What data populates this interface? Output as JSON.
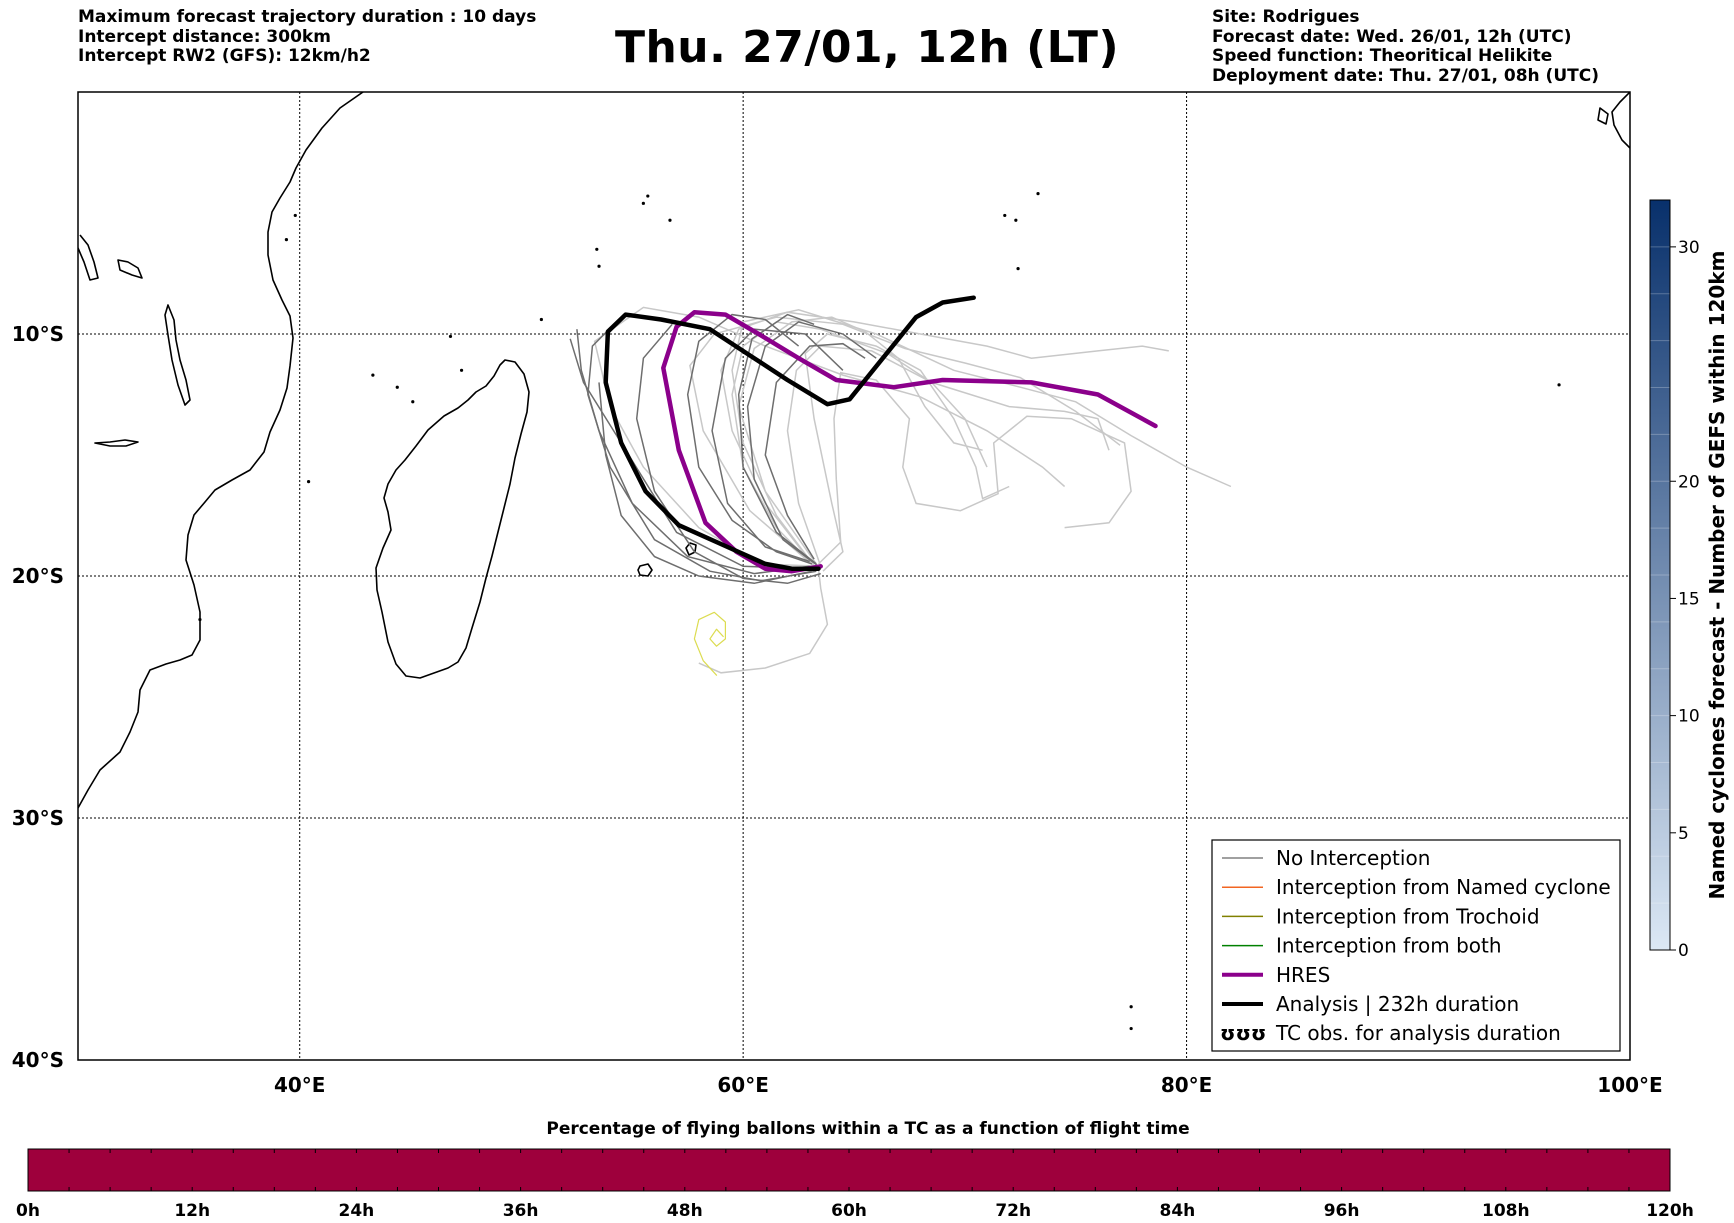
{
  "header": {
    "left_lines": [
      "Maximum forecast trajectory duration : 10 days",
      "Intercept distance: 300km",
      "Intercept RW2 (GFS):  12km/h2"
    ],
    "title": "Thu. 27/01, 12h (LT)",
    "right_lines": [
      "Site: Rodrigues",
      "Forecast date: Wed. 26/01, 12h (UTC)",
      "Speed function: Theoritical Helikite",
      "Deployment date: Thu. 27/01, 08h (UTC)"
    ]
  },
  "map": {
    "lon_range": [
      30,
      100
    ],
    "lat_range": [
      0,
      -40
    ],
    "lon_grid": [
      40,
      60,
      80
    ],
    "lat_grid": [
      -10,
      -20,
      -30
    ],
    "x_ticks": [
      {
        "lon": 40,
        "label": "40°E"
      },
      {
        "lon": 60,
        "label": "60°E"
      },
      {
        "lon": 80,
        "label": "80°E"
      },
      {
        "lon": 100,
        "label": "100°E"
      }
    ],
    "y_ticks": [
      {
        "lat": -10,
        "label": "10°S"
      },
      {
        "lat": -20,
        "label": "20°S"
      },
      {
        "lat": -30,
        "label": "30°S"
      },
      {
        "lat": -40,
        "label": "40°S"
      }
    ]
  },
  "chart_data": {
    "type": "line",
    "x_unit": "longitude (°E)",
    "y_unit": "latitude (°, negative = S)",
    "series": [
      {
        "name": "HRES",
        "color": "#8b008b",
        "width": 4.5,
        "points": [
          [
            63.5,
            -19.6
          ],
          [
            62.2,
            -19.8
          ],
          [
            61,
            -19.7
          ],
          [
            59.7,
            -19
          ],
          [
            58.3,
            -17.8
          ],
          [
            57.1,
            -14.8
          ],
          [
            56.4,
            -11.4
          ],
          [
            57,
            -9.7
          ],
          [
            57.8,
            -9.1
          ],
          [
            59.2,
            -9.2
          ],
          [
            60.7,
            -10
          ],
          [
            62.5,
            -11
          ],
          [
            64.2,
            -11.9
          ],
          [
            66.8,
            -12.2
          ],
          [
            69,
            -11.9
          ],
          [
            73,
            -12
          ],
          [
            76,
            -12.5
          ],
          [
            78.6,
            -13.8
          ]
        ]
      },
      {
        "name": "Analysis | 232h duration",
        "color": "#000000",
        "width": 4.5,
        "points": [
          [
            63.4,
            -19.7
          ],
          [
            62.2,
            -19.7
          ],
          [
            61,
            -19.5
          ],
          [
            59.3,
            -18.8
          ],
          [
            57.1,
            -17.9
          ],
          [
            55.6,
            -16.5
          ],
          [
            54.5,
            -14.5
          ],
          [
            53.8,
            -12
          ],
          [
            53.9,
            -9.9
          ],
          [
            54.7,
            -9.2
          ],
          [
            56.3,
            -9.4
          ],
          [
            58.5,
            -9.8
          ],
          [
            60.5,
            -11
          ],
          [
            62,
            -11.9
          ],
          [
            63.8,
            -12.9
          ],
          [
            64.8,
            -12.7
          ],
          [
            66.3,
            -11
          ],
          [
            67.8,
            -9.3
          ],
          [
            69,
            -8.7
          ],
          [
            70.4,
            -8.5
          ]
        ]
      },
      {
        "name": "",
        "color": "#dcdc50",
        "width": 1.2,
        "points": [
          [
            58.8,
            -24.1
          ],
          [
            58.2,
            -23.5
          ],
          [
            57.8,
            -22.6
          ],
          [
            58,
            -21.8
          ],
          [
            58.7,
            -21.5
          ],
          [
            59.2,
            -21.9
          ],
          [
            59.2,
            -22.6
          ],
          [
            58.8,
            -22.9
          ],
          [
            58.5,
            -22.6
          ],
          [
            58.8,
            -22.2
          ],
          [
            59.1,
            -22.5
          ]
        ]
      }
    ],
    "gefs_dark": [
      [
        [
          63.2,
          -19.7
        ],
        [
          60,
          -19.6
        ],
        [
          57,
          -18.2
        ],
        [
          54.5,
          -14.5
        ],
        [
          52.8,
          -12
        ],
        [
          52.2,
          -10.2
        ]
      ],
      [
        [
          63,
          -19.6
        ],
        [
          60.5,
          -19.9
        ],
        [
          57.5,
          -19.2
        ],
        [
          55,
          -17
        ],
        [
          53.5,
          -14
        ],
        [
          52.7,
          -11.5
        ],
        [
          52.5,
          -9.8
        ]
      ],
      [
        [
          63.3,
          -19.8
        ],
        [
          60.8,
          -20.2
        ],
        [
          58.5,
          -19.8
        ],
        [
          56,
          -18.5
        ],
        [
          54,
          -15.5
        ],
        [
          53,
          -12.5
        ],
        [
          53.2,
          -10.5
        ],
        [
          54.5,
          -9.3
        ]
      ],
      [
        [
          63.1,
          -19.5
        ],
        [
          61.5,
          -19
        ],
        [
          59.5,
          -17.7
        ],
        [
          58,
          -15.5
        ],
        [
          57.5,
          -12.5
        ],
        [
          58,
          -10.3
        ],
        [
          59.5,
          -9.2
        ],
        [
          61,
          -9.4
        ],
        [
          62.5,
          -10.5
        ]
      ],
      [
        [
          63.4,
          -19.6
        ],
        [
          61.8,
          -18.5
        ],
        [
          60.5,
          -16
        ],
        [
          60.2,
          -13
        ],
        [
          61,
          -10.5
        ],
        [
          62.5,
          -9.5
        ],
        [
          64.5,
          -10
        ],
        [
          66,
          -11
        ]
      ],
      [
        [
          63,
          -19.4
        ],
        [
          61,
          -18.8
        ],
        [
          59.3,
          -17
        ],
        [
          58.6,
          -14
        ],
        [
          59.2,
          -11
        ],
        [
          60.5,
          -9.8
        ],
        [
          62.8,
          -10
        ],
        [
          64.5,
          -11.5
        ]
      ],
      [
        [
          63.5,
          -19.9
        ],
        [
          62,
          -20.3
        ],
        [
          60,
          -20.1
        ],
        [
          57.8,
          -19
        ],
        [
          56,
          -16.5
        ],
        [
          55.2,
          -13.5
        ],
        [
          55.5,
          -11
        ],
        [
          56.8,
          -9.6
        ]
      ],
      [
        [
          63.2,
          -19.3
        ],
        [
          62,
          -17.5
        ],
        [
          61,
          -15
        ],
        [
          61.5,
          -12
        ],
        [
          63,
          -10.5
        ],
        [
          64.5,
          -10.4
        ],
        [
          65.5,
          -11
        ]
      ],
      [
        [
          63.1,
          -19.8
        ],
        [
          60.5,
          -20.3
        ],
        [
          58,
          -20
        ],
        [
          56,
          -19.2
        ],
        [
          54.5,
          -17.5
        ],
        [
          53.8,
          -15
        ],
        [
          53.5,
          -12
        ]
      ],
      [
        [
          63.3,
          -19.5
        ],
        [
          61.5,
          -18.2
        ],
        [
          60,
          -15.5
        ],
        [
          59.8,
          -12.5
        ],
        [
          60.4,
          -10.2
        ],
        [
          62,
          -9.2
        ],
        [
          63.2,
          -9.6
        ]
      ]
    ],
    "gefs_light": [
      [
        [
          63.5,
          -19.6
        ],
        [
          60.8,
          -19.5
        ],
        [
          58,
          -18
        ],
        [
          55.5,
          -15.5
        ],
        [
          54,
          -13
        ],
        [
          53.3,
          -10.3
        ],
        [
          55.5,
          -8.9
        ],
        [
          58,
          -9.3
        ],
        [
          61,
          -10.5
        ],
        [
          64.5,
          -11.7
        ],
        [
          68,
          -12.6
        ],
        [
          71,
          -14
        ],
        [
          73.5,
          -15.5
        ],
        [
          74.5,
          -16.3
        ]
      ],
      [
        [
          63.3,
          -19.7
        ],
        [
          61.5,
          -17.5
        ],
        [
          60,
          -14.5
        ],
        [
          59.5,
          -11.5
        ],
        [
          60,
          -9.5
        ],
        [
          62.5,
          -9
        ],
        [
          66,
          -10
        ],
        [
          69.5,
          -11.5
        ],
        [
          72.5,
          -12.2
        ],
        [
          75,
          -12.8
        ],
        [
          77.5,
          -14.2
        ],
        [
          80,
          -15.5
        ],
        [
          82,
          -16.3
        ]
      ],
      [
        [
          63.2,
          -19.6
        ],
        [
          61,
          -17
        ],
        [
          59.5,
          -14
        ],
        [
          59,
          -11.5
        ],
        [
          59.8,
          -9.8
        ],
        [
          62,
          -9.1
        ],
        [
          65,
          -9.5
        ],
        [
          68,
          -10
        ],
        [
          71,
          -10.5
        ],
        [
          73,
          -11
        ],
        [
          76,
          -10.7
        ],
        [
          78,
          -10.5
        ],
        [
          79.2,
          -10.7
        ]
      ],
      [
        [
          63.1,
          -19.5
        ],
        [
          61.5,
          -18
        ],
        [
          60,
          -15.5
        ],
        [
          59.5,
          -12.5
        ],
        [
          60,
          -10.5
        ],
        [
          61.5,
          -9.5
        ],
        [
          63.5,
          -9.8
        ],
        [
          66.5,
          -10.8
        ],
        [
          68.5,
          -12
        ],
        [
          70,
          -13.5
        ],
        [
          71,
          -15.5
        ]
      ],
      [
        [
          63.6,
          -19.8
        ],
        [
          64.5,
          -19
        ],
        [
          64,
          -17
        ],
        [
          63.2,
          -13.5
        ],
        [
          62.8,
          -10.8
        ],
        [
          63.8,
          -10
        ],
        [
          66,
          -10.5
        ],
        [
          68,
          -11.5
        ],
        [
          69.5,
          -13.5
        ],
        [
          70.5,
          -15.5
        ],
        [
          70.8,
          -16.8
        ],
        [
          72,
          -16.3
        ]
      ],
      [
        [
          63.4,
          -19.7
        ],
        [
          63.5,
          -20.5
        ],
        [
          63.8,
          -22
        ],
        [
          63,
          -23.2
        ],
        [
          61,
          -23.8
        ],
        [
          59,
          -24
        ],
        [
          58,
          -23.6
        ]
      ],
      [
        [
          63.4,
          -19.5
        ],
        [
          64.4,
          -18.6
        ],
        [
          64.2,
          -16
        ],
        [
          64.1,
          -13.5
        ],
        [
          64.4,
          -11.6
        ],
        [
          66,
          -11.9
        ],
        [
          67.5,
          -13.5
        ],
        [
          67.2,
          -15.5
        ],
        [
          67.8,
          -17
        ],
        [
          69.8,
          -17.3
        ],
        [
          71.5,
          -16.6
        ],
        [
          71.3,
          -14.5
        ],
        [
          72.8,
          -13.4
        ],
        [
          74.8,
          -13.5
        ],
        [
          77.2,
          -14.5
        ],
        [
          77.5,
          -16.5
        ],
        [
          76.5,
          -17.8
        ],
        [
          74.5,
          -18
        ]
      ],
      [
        [
          63.5,
          -19.6
        ],
        [
          62.5,
          -17
        ],
        [
          62,
          -14
        ],
        [
          62.4,
          -11.5
        ],
        [
          63.5,
          -10.5
        ],
        [
          65.8,
          -10.7
        ],
        [
          68.5,
          -12
        ],
        [
          72,
          -13
        ],
        [
          74.5,
          -13.2
        ],
        [
          76,
          -13.5
        ],
        [
          76.5,
          -14.8
        ]
      ],
      [
        [
          63.3,
          -19.5
        ],
        [
          61,
          -16.5
        ],
        [
          59.8,
          -13
        ],
        [
          60.5,
          -10.6
        ],
        [
          62.2,
          -9.5
        ],
        [
          64,
          -9.3
        ],
        [
          65.5,
          -9.9
        ],
        [
          67,
          -11
        ],
        [
          68.2,
          -13
        ],
        [
          69.5,
          -14.5
        ],
        [
          70.8,
          -14.8
        ]
      ],
      [
        [
          63.2,
          -19.6
        ],
        [
          60.3,
          -17.3
        ],
        [
          58.2,
          -14
        ],
        [
          57.6,
          -11.3
        ],
        [
          58.7,
          -10
        ],
        [
          61.5,
          -9.3
        ],
        [
          64.5,
          -9.6
        ],
        [
          67.3,
          -10.6
        ],
        [
          70,
          -11.2
        ],
        [
          72.5,
          -11.8
        ],
        [
          75,
          -13.2
        ],
        [
          77,
          -14.6
        ]
      ]
    ]
  },
  "legend": {
    "items": [
      {
        "label": "No Interception",
        "color": "#808080",
        "kind": "line",
        "width": 1.5
      },
      {
        "label": "Interception from Named cyclone",
        "color": "#f26522",
        "kind": "line",
        "width": 1.5
      },
      {
        "label": "Interception from Trochoid",
        "color": "#808000",
        "kind": "line",
        "width": 1.5
      },
      {
        "label": "Interception from both",
        "color": "#008000",
        "kind": "line",
        "width": 1.5
      },
      {
        "label": "HRES",
        "color": "#8b008b",
        "kind": "line",
        "width": 4
      },
      {
        "label": "Analysis | 232h duration",
        "color": "#000000",
        "kind": "line",
        "width": 4
      },
      {
        "label": "TC obs. for analysis duration",
        "color": "#000000",
        "kind": "symbol"
      }
    ]
  },
  "colorbar_right": {
    "label": "Named cyclones forecast - Number of GEFS within 120km",
    "min": 0,
    "max": 32,
    "ticks": [
      0,
      5,
      10,
      15,
      20,
      30
    ],
    "color_low": "#dce8f5",
    "color_high": "#08306b"
  },
  "colorbar_bottom": {
    "title": "Percentage of flying ballons within a TC as a function of flight time",
    "color": "#9e003c",
    "ticks": [
      "0h",
      "12h",
      "24h",
      "36h",
      "48h",
      "60h",
      "72h",
      "84h",
      "96h",
      "108h",
      "120h"
    ]
  }
}
